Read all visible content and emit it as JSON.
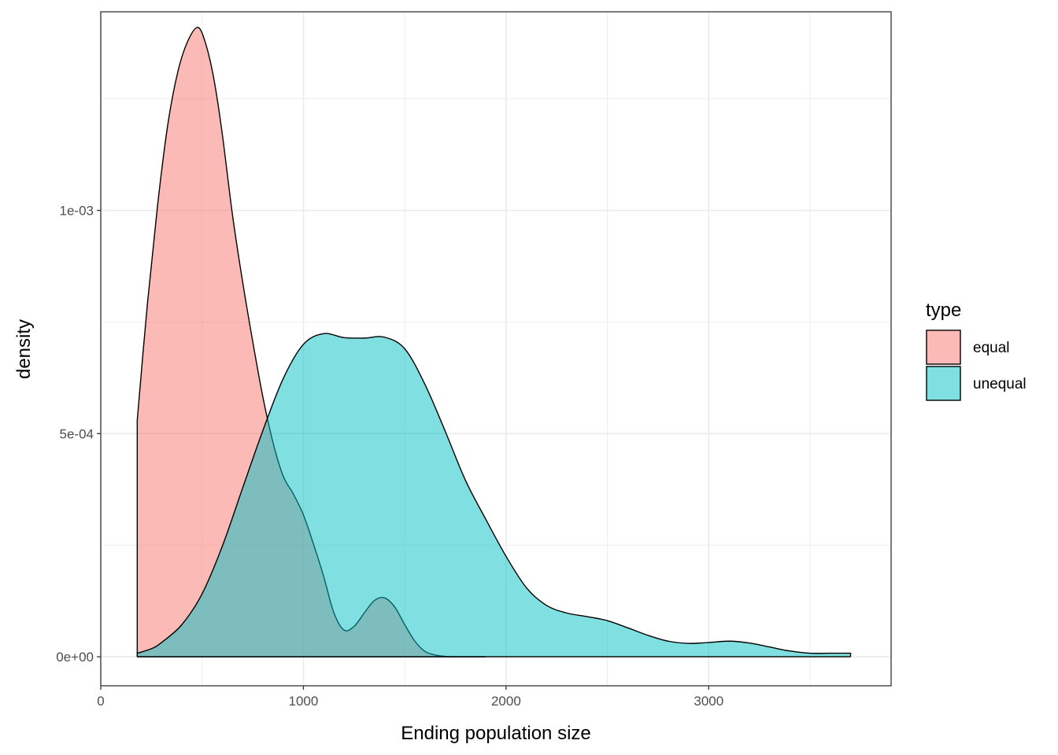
{
  "chart_data": {
    "type": "area",
    "subtype": "density",
    "title": "",
    "xlabel": "Ending population size",
    "ylabel": "density",
    "xlim": [
      0,
      3900
    ],
    "ylim": [
      -6.5e-05,
      0.001445
    ],
    "x_ticks": [
      0,
      1000,
      2000,
      3000
    ],
    "x_tick_labels": [
      "0",
      "1000",
      "2000",
      "3000"
    ],
    "y_ticks": [
      0,
      0.0005,
      0.001
    ],
    "y_tick_labels": [
      "0e+00",
      "5e-04",
      "1e-03"
    ],
    "grid": true,
    "legend": {
      "title": "type",
      "placement": "right"
    },
    "series": [
      {
        "name": "equal",
        "color": "#F8766D",
        "fill_opacity": 0.5,
        "x": [
          180,
          230,
          280,
          330,
          380,
          430,
          480,
          520,
          560,
          600,
          650,
          700,
          750,
          800,
          850,
          900,
          950,
          1000,
          1050,
          1100,
          1150,
          1200,
          1250,
          1300,
          1350,
          1400,
          1450,
          1500,
          1550,
          1600,
          1650,
          1700,
          1750,
          1800,
          1850,
          1900
        ],
        "values": [
          0.00053,
          0.00079,
          0.00101,
          0.00119,
          0.00131,
          0.00138,
          0.00141,
          0.00137,
          0.00129,
          0.00117,
          0.00099,
          0.00084,
          0.000706,
          0.000582,
          0.00048,
          0.000405,
          0.000365,
          0.000318,
          0.000252,
          0.00018,
          9.9e-05,
          6e-05,
          6.8e-05,
          9.8e-05,
          0.000126,
          0.000132,
          0.000112,
          7.2e-05,
          3.5e-05,
          1.2e-05,
          4e-06,
          1e-06,
          0.0,
          0.0,
          0.0,
          0.0
        ]
      },
      {
        "name": "unequal",
        "color": "#00BFC4",
        "fill_opacity": 0.5,
        "x": [
          180,
          250,
          300,
          400,
          500,
          600,
          700,
          800,
          900,
          1000,
          1100,
          1200,
          1300,
          1400,
          1500,
          1600,
          1700,
          1800,
          1900,
          2000,
          2100,
          2200,
          2300,
          2400,
          2500,
          2600,
          2700,
          2800,
          2900,
          3000,
          3100,
          3200,
          3300,
          3400,
          3500,
          3600,
          3700
        ],
        "values": [
          8e-06,
          1.8e-05,
          3.2e-05,
          7.2e-05,
          0.000141,
          0.000248,
          0.000378,
          0.000507,
          0.000623,
          0.0007,
          0.000724,
          0.000715,
          0.000714,
          0.000716,
          0.00069,
          0.00061,
          0.000505,
          0.000395,
          0.000308,
          0.000225,
          0.000155,
          0.000115,
          9.8e-05,
          9e-05,
          8.1e-05,
          6.5e-05,
          4.8e-05,
          3.5e-05,
          3e-05,
          3.2e-05,
          3.5e-05,
          3.1e-05,
          2.2e-05,
          1.3e-05,
          8e-06,
          8e-06,
          8e-06
        ]
      }
    ]
  }
}
